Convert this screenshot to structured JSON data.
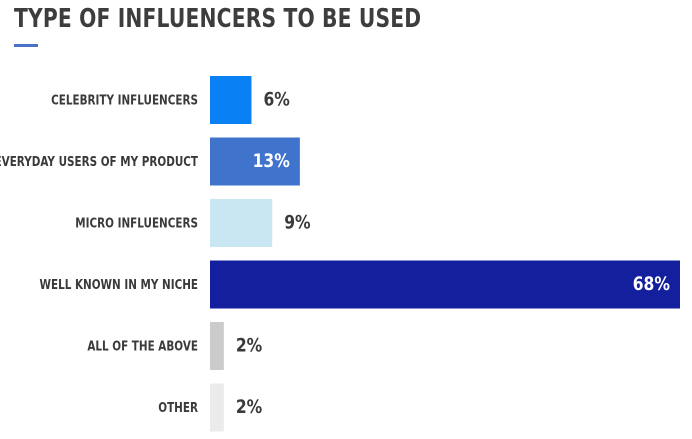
{
  "chart_data": {
    "type": "bar",
    "orientation": "horizontal",
    "title": "TYPE OF INFLUENCERS TO BE USED",
    "categories": [
      "CELEBRITY INFLUENCERS",
      "EVERYDAY USERS OF MY PRODUCT",
      "MICRO INFLUENCERS",
      "WELL KNOWN IN MY NICHE",
      "ALL OF THE ABOVE",
      "OTHER"
    ],
    "values": [
      6,
      13,
      9,
      68,
      2,
      2
    ],
    "value_labels": [
      "6%",
      "13%",
      "9%",
      "68%",
      "2%",
      "2%"
    ],
    "unit": "%",
    "xlim": [
      0,
      68
    ],
    "grid": false,
    "legend": "none",
    "bar_colors": [
      "#0a80f5",
      "#3f73cc",
      "#c9e6f3",
      "#131f9c",
      "#cbcbcb",
      "#ebebeb"
    ],
    "label_colors": [
      "#3a3a3a",
      "#ffffff",
      "#3a3a3a",
      "#ffffff",
      "#3a3a3a",
      "#3a3a3a"
    ]
  },
  "colors": {
    "title": "#3d3d3d",
    "accent_underline": "#4a72c8"
  }
}
